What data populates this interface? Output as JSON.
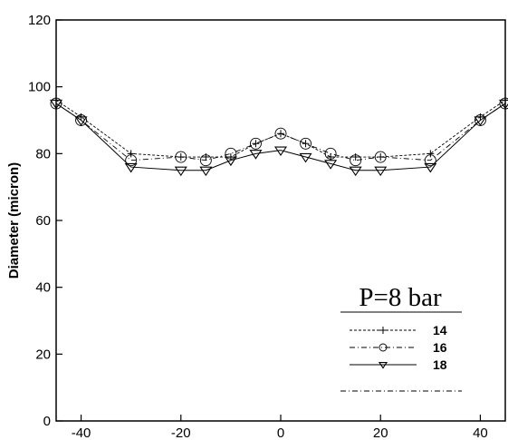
{
  "chart_data": {
    "type": "line",
    "title": "",
    "xlabel": "",
    "ylabel": "Diameter (micron)",
    "xlim": [
      -45,
      45
    ],
    "ylim": [
      0,
      120
    ],
    "xticks": [
      -40,
      -20,
      0,
      20,
      40
    ],
    "yticks": [
      0,
      20,
      40,
      60,
      80,
      100,
      120
    ],
    "grid": false,
    "legend": {
      "title": "P=8 bar",
      "placement": "bottom-right"
    },
    "series": [
      {
        "name": "14",
        "marker": "plus",
        "color": "#000000",
        "x": [
          -45,
          -40,
          -30,
          -20,
          -15,
          -10,
          -5,
          0,
          5,
          10,
          15,
          20,
          30,
          40,
          45
        ],
        "y": [
          96,
          91,
          80,
          79,
          79,
          79,
          83,
          86,
          83,
          79,
          79,
          79,
          80,
          91,
          96
        ]
      },
      {
        "name": "16",
        "marker": "circle",
        "color": "#000000",
        "x": [
          -45,
          -40,
          -30,
          -20,
          -15,
          -10,
          -5,
          0,
          5,
          10,
          15,
          20,
          30,
          40,
          45
        ],
        "y": [
          95,
          90,
          78,
          79,
          78,
          80,
          83,
          86,
          83,
          80,
          78,
          79,
          78,
          90,
          95
        ]
      },
      {
        "name": "18",
        "marker": "triangle-down",
        "color": "#000000",
        "x": [
          -45,
          -40,
          -30,
          -20,
          -15,
          -10,
          -5,
          0,
          5,
          10,
          15,
          20,
          30,
          40,
          45
        ],
        "y": [
          95,
          90,
          76,
          75,
          75,
          78,
          80,
          81,
          79,
          77,
          75,
          75,
          76,
          90,
          95
        ]
      }
    ],
    "extra_legend_entry": {
      "label": "",
      "style": "dash-dot"
    }
  }
}
